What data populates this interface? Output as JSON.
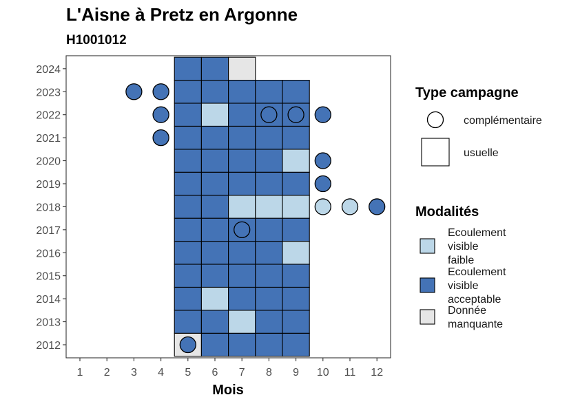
{
  "chart_data": {
    "type": "heatmap",
    "title": "L'Aisne à Pretz en Argonne",
    "subtitle": "H1001012",
    "xlabel": "Mois",
    "ylabel": "",
    "x_ticks": [
      "1",
      "2",
      "3",
      "4",
      "5",
      "6",
      "7",
      "8",
      "9",
      "10",
      "11",
      "12"
    ],
    "y_ticks": [
      "2012",
      "2013",
      "2014",
      "2015",
      "2016",
      "2017",
      "2018",
      "2019",
      "2020",
      "2021",
      "2022",
      "2023",
      "2024"
    ],
    "grid": false,
    "legend_position": "right",
    "colors": {
      "Ecoulement visible faible": "#bcd7e8",
      "Ecoulement visible acceptable": "#4473b6",
      "Donnée manquante": "#e6e6e6"
    },
    "legend_type": {
      "title": "Type campagne",
      "items": [
        {
          "label": "complémentaire",
          "shape": "circle"
        },
        {
          "label": "usuelle",
          "shape": "square"
        }
      ]
    },
    "legend_modalites": {
      "title": "Modalités",
      "items": [
        {
          "lines": [
            "Ecoulement",
            "visible",
            "faible"
          ],
          "color": "#bcd7e8"
        },
        {
          "lines": [
            "Ecoulement",
            "visible",
            "acceptable"
          ],
          "color": "#4473b6"
        },
        {
          "lines": [
            "Donnée",
            "manquante"
          ],
          "color": "#e6e6e6"
        }
      ]
    },
    "points": [
      {
        "year": 2012,
        "month": 5,
        "type": "usuelle",
        "modalite": "Donnée manquante"
      },
      {
        "year": 2012,
        "month": 6,
        "type": "usuelle",
        "modalite": "Ecoulement visible acceptable"
      },
      {
        "year": 2012,
        "month": 7,
        "type": "usuelle",
        "modalite": "Ecoulement visible acceptable"
      },
      {
        "year": 2012,
        "month": 8,
        "type": "usuelle",
        "modalite": "Ecoulement visible acceptable"
      },
      {
        "year": 2012,
        "month": 9,
        "type": "usuelle",
        "modalite": "Ecoulement visible acceptable"
      },
      {
        "year": 2012,
        "month": 5,
        "type": "complémentaire",
        "modalite": "Ecoulement visible acceptable"
      },
      {
        "year": 2013,
        "month": 5,
        "type": "usuelle",
        "modalite": "Ecoulement visible acceptable"
      },
      {
        "year": 2013,
        "month": 6,
        "type": "usuelle",
        "modalite": "Ecoulement visible acceptable"
      },
      {
        "year": 2013,
        "month": 7,
        "type": "usuelle",
        "modalite": "Ecoulement visible faible"
      },
      {
        "year": 2013,
        "month": 8,
        "type": "usuelle",
        "modalite": "Ecoulement visible acceptable"
      },
      {
        "year": 2013,
        "month": 9,
        "type": "usuelle",
        "modalite": "Ecoulement visible acceptable"
      },
      {
        "year": 2014,
        "month": 5,
        "type": "usuelle",
        "modalite": "Ecoulement visible acceptable"
      },
      {
        "year": 2014,
        "month": 6,
        "type": "usuelle",
        "modalite": "Ecoulement visible faible"
      },
      {
        "year": 2014,
        "month": 7,
        "type": "usuelle",
        "modalite": "Ecoulement visible acceptable"
      },
      {
        "year": 2014,
        "month": 8,
        "type": "usuelle",
        "modalite": "Ecoulement visible acceptable"
      },
      {
        "year": 2014,
        "month": 9,
        "type": "usuelle",
        "modalite": "Ecoulement visible acceptable"
      },
      {
        "year": 2015,
        "month": 5,
        "type": "usuelle",
        "modalite": "Ecoulement visible acceptable"
      },
      {
        "year": 2015,
        "month": 6,
        "type": "usuelle",
        "modalite": "Ecoulement visible acceptable"
      },
      {
        "year": 2015,
        "month": 7,
        "type": "usuelle",
        "modalite": "Ecoulement visible acceptable"
      },
      {
        "year": 2015,
        "month": 8,
        "type": "usuelle",
        "modalite": "Ecoulement visible acceptable"
      },
      {
        "year": 2015,
        "month": 9,
        "type": "usuelle",
        "modalite": "Ecoulement visible acceptable"
      },
      {
        "year": 2016,
        "month": 5,
        "type": "usuelle",
        "modalite": "Ecoulement visible acceptable"
      },
      {
        "year": 2016,
        "month": 6,
        "type": "usuelle",
        "modalite": "Ecoulement visible acceptable"
      },
      {
        "year": 2016,
        "month": 7,
        "type": "usuelle",
        "modalite": "Ecoulement visible acceptable"
      },
      {
        "year": 2016,
        "month": 8,
        "type": "usuelle",
        "modalite": "Ecoulement visible acceptable"
      },
      {
        "year": 2016,
        "month": 9,
        "type": "usuelle",
        "modalite": "Ecoulement visible faible"
      },
      {
        "year": 2017,
        "month": 5,
        "type": "usuelle",
        "modalite": "Ecoulement visible acceptable"
      },
      {
        "year": 2017,
        "month": 6,
        "type": "usuelle",
        "modalite": "Ecoulement visible acceptable"
      },
      {
        "year": 2017,
        "month": 7,
        "type": "usuelle",
        "modalite": "Ecoulement visible acceptable"
      },
      {
        "year": 2017,
        "month": 8,
        "type": "usuelle",
        "modalite": "Ecoulement visible acceptable"
      },
      {
        "year": 2017,
        "month": 9,
        "type": "usuelle",
        "modalite": "Ecoulement visible acceptable"
      },
      {
        "year": 2017,
        "month": 7,
        "type": "complémentaire",
        "modalite": "Ecoulement visible acceptable"
      },
      {
        "year": 2018,
        "month": 5,
        "type": "usuelle",
        "modalite": "Ecoulement visible acceptable"
      },
      {
        "year": 2018,
        "month": 6,
        "type": "usuelle",
        "modalite": "Ecoulement visible acceptable"
      },
      {
        "year": 2018,
        "month": 7,
        "type": "usuelle",
        "modalite": "Ecoulement visible faible"
      },
      {
        "year": 2018,
        "month": 8,
        "type": "usuelle",
        "modalite": "Ecoulement visible faible"
      },
      {
        "year": 2018,
        "month": 9,
        "type": "usuelle",
        "modalite": "Ecoulement visible faible"
      },
      {
        "year": 2018,
        "month": 10,
        "type": "complémentaire",
        "modalite": "Ecoulement visible faible"
      },
      {
        "year": 2018,
        "month": 11,
        "type": "complémentaire",
        "modalite": "Ecoulement visible faible"
      },
      {
        "year": 2018,
        "month": 12,
        "type": "complémentaire",
        "modalite": "Ecoulement visible acceptable"
      },
      {
        "year": 2019,
        "month": 5,
        "type": "usuelle",
        "modalite": "Ecoulement visible acceptable"
      },
      {
        "year": 2019,
        "month": 6,
        "type": "usuelle",
        "modalite": "Ecoulement visible acceptable"
      },
      {
        "year": 2019,
        "month": 7,
        "type": "usuelle",
        "modalite": "Ecoulement visible acceptable"
      },
      {
        "year": 2019,
        "month": 8,
        "type": "usuelle",
        "modalite": "Ecoulement visible acceptable"
      },
      {
        "year": 2019,
        "month": 9,
        "type": "usuelle",
        "modalite": "Ecoulement visible acceptable"
      },
      {
        "year": 2019,
        "month": 10,
        "type": "complémentaire",
        "modalite": "Ecoulement visible acceptable"
      },
      {
        "year": 2020,
        "month": 5,
        "type": "usuelle",
        "modalite": "Ecoulement visible acceptable"
      },
      {
        "year": 2020,
        "month": 6,
        "type": "usuelle",
        "modalite": "Ecoulement visible acceptable"
      },
      {
        "year": 2020,
        "month": 7,
        "type": "usuelle",
        "modalite": "Ecoulement visible acceptable"
      },
      {
        "year": 2020,
        "month": 8,
        "type": "usuelle",
        "modalite": "Ecoulement visible acceptable"
      },
      {
        "year": 2020,
        "month": 9,
        "type": "usuelle",
        "modalite": "Ecoulement visible faible"
      },
      {
        "year": 2020,
        "month": 10,
        "type": "complémentaire",
        "modalite": "Ecoulement visible acceptable"
      },
      {
        "year": 2021,
        "month": 4,
        "type": "complémentaire",
        "modalite": "Ecoulement visible acceptable"
      },
      {
        "year": 2021,
        "month": 5,
        "type": "usuelle",
        "modalite": "Ecoulement visible acceptable"
      },
      {
        "year": 2021,
        "month": 6,
        "type": "usuelle",
        "modalite": "Ecoulement visible acceptable"
      },
      {
        "year": 2021,
        "month": 7,
        "type": "usuelle",
        "modalite": "Ecoulement visible acceptable"
      },
      {
        "year": 2021,
        "month": 8,
        "type": "usuelle",
        "modalite": "Ecoulement visible acceptable"
      },
      {
        "year": 2021,
        "month": 9,
        "type": "usuelle",
        "modalite": "Ecoulement visible acceptable"
      },
      {
        "year": 2022,
        "month": 4,
        "type": "complémentaire",
        "modalite": "Ecoulement visible acceptable"
      },
      {
        "year": 2022,
        "month": 5,
        "type": "usuelle",
        "modalite": "Ecoulement visible acceptable"
      },
      {
        "year": 2022,
        "month": 6,
        "type": "usuelle",
        "modalite": "Ecoulement visible faible"
      },
      {
        "year": 2022,
        "month": 7,
        "type": "usuelle",
        "modalite": "Ecoulement visible acceptable"
      },
      {
        "year": 2022,
        "month": 8,
        "type": "usuelle",
        "modalite": "Ecoulement visible acceptable"
      },
      {
        "year": 2022,
        "month": 9,
        "type": "usuelle",
        "modalite": "Ecoulement visible acceptable"
      },
      {
        "year": 2022,
        "month": 8,
        "type": "complémentaire",
        "modalite": "Ecoulement visible acceptable"
      },
      {
        "year": 2022,
        "month": 9,
        "type": "complémentaire",
        "modalite": "Ecoulement visible acceptable"
      },
      {
        "year": 2022,
        "month": 10,
        "type": "complémentaire",
        "modalite": "Ecoulement visible acceptable"
      },
      {
        "year": 2023,
        "month": 3,
        "type": "complémentaire",
        "modalite": "Ecoulement visible acceptable"
      },
      {
        "year": 2023,
        "month": 4,
        "type": "complémentaire",
        "modalite": "Ecoulement visible acceptable"
      },
      {
        "year": 2023,
        "month": 5,
        "type": "usuelle",
        "modalite": "Ecoulement visible acceptable"
      },
      {
        "year": 2023,
        "month": 6,
        "type": "usuelle",
        "modalite": "Ecoulement visible acceptable"
      },
      {
        "year": 2023,
        "month": 7,
        "type": "usuelle",
        "modalite": "Ecoulement visible acceptable"
      },
      {
        "year": 2023,
        "month": 8,
        "type": "usuelle",
        "modalite": "Ecoulement visible acceptable"
      },
      {
        "year": 2023,
        "month": 9,
        "type": "usuelle",
        "modalite": "Ecoulement visible acceptable"
      },
      {
        "year": 2024,
        "month": 5,
        "type": "usuelle",
        "modalite": "Ecoulement visible acceptable"
      },
      {
        "year": 2024,
        "month": 6,
        "type": "usuelle",
        "modalite": "Ecoulement visible acceptable"
      },
      {
        "year": 2024,
        "month": 7,
        "type": "usuelle",
        "modalite": "Donnée manquante"
      }
    ]
  }
}
